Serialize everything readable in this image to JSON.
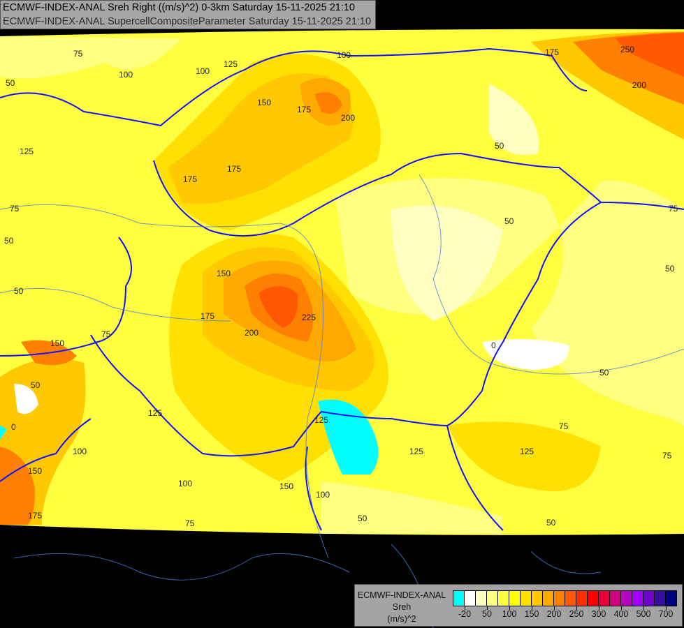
{
  "header": {
    "line1": "ECMWF-INDEX-ANAL Sreh Right ((m/s)^2) 0-3km Saturday 15-11-2025 21:10",
    "line2": "ECMWF-INDEX-ANAL SupercellCompositeParameter Saturday 15-11-2025 21:10"
  },
  "legend": {
    "model": "ECMWF-INDEX-ANAL",
    "parameter": "Sreh",
    "unit": "(m/s)^2",
    "colors": [
      "#00ffff",
      "#ffffff",
      "#ffffc0",
      "#ffff80",
      "#ffff40",
      "#ffff00",
      "#ffe000",
      "#ffc800",
      "#ffa800",
      "#ff8000",
      "#ff5800",
      "#ff3000",
      "#ff0000",
      "#e8003c",
      "#d00080",
      "#b800c0",
      "#a000ff",
      "#7000d0",
      "#3810a0",
      "#000080"
    ],
    "ticks": [
      "-20",
      "50",
      "100",
      "150",
      "200",
      "250",
      "300",
      "400",
      "500",
      "700"
    ]
  },
  "contour_labels": [
    "75",
    "100",
    "100",
    "125",
    "150",
    "175",
    "200",
    "100",
    "175",
    "250",
    "200",
    "50",
    "125",
    "175",
    "175",
    "50",
    "75",
    "50",
    "50",
    "150",
    "175",
    "200",
    "225",
    "0",
    "50",
    "50",
    "150",
    "75",
    "50",
    "75",
    "125",
    "100",
    "125",
    "100",
    "150",
    "100",
    "125",
    "75",
    "50",
    "75",
    "50",
    "0",
    "150",
    "175",
    "50",
    "125",
    "75"
  ]
}
